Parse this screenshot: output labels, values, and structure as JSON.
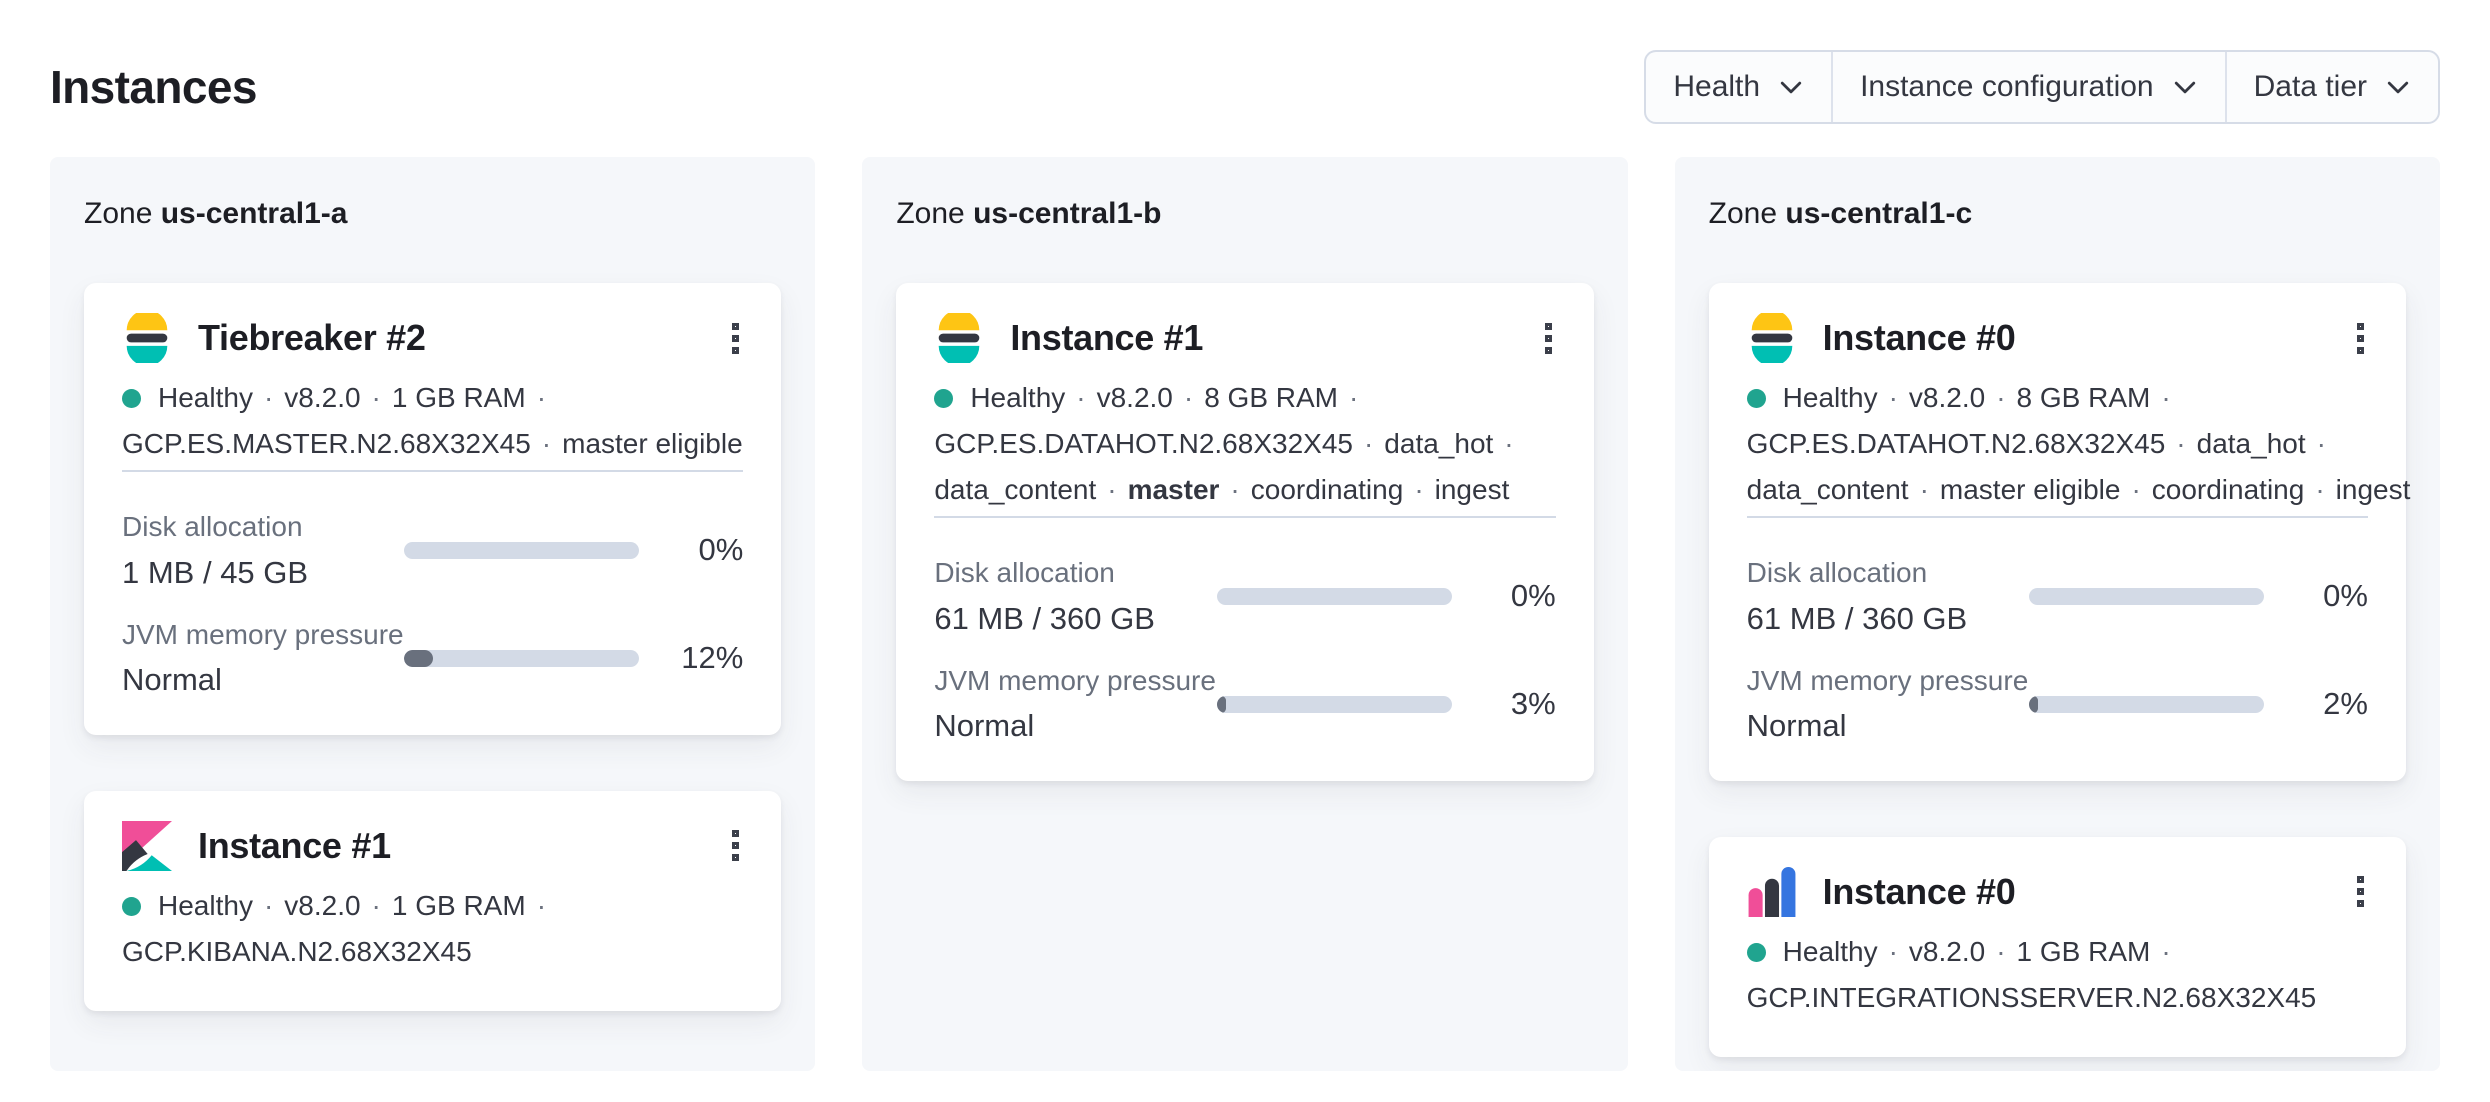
{
  "page": {
    "title": "Instances"
  },
  "filters": [
    {
      "label": "Health"
    },
    {
      "label": "Instance configuration"
    },
    {
      "label": "Data tier"
    }
  ],
  "icons": {
    "menu": "boxes-vertical-icon",
    "chevron": "chevron-down-icon",
    "health": "health-status-dot",
    "logos": [
      "elasticsearch-logo",
      "kibana-logo",
      "integrations-server-logo"
    ]
  },
  "colors": {
    "healthy_dot": "#20a48f",
    "bar_track": "#d3dae6",
    "bar_fill": "#69707d",
    "es_yellow": "#fec514",
    "es_dark": "#343741",
    "es_teal": "#00bfb3",
    "kibana_pink": "#f04e98",
    "agent_blue": "#3575e0"
  },
  "zones": [
    {
      "label": "Zone",
      "name": "us-central1-a",
      "cards": [
        {
          "logo": "elasticsearch",
          "title": "Tiebreaker #2",
          "health": "Healthy",
          "status_lines": [
            [
              {
                "text": "Healthy"
              },
              {
                "text": "·",
                "sep": true
              },
              {
                "text": "v8.2.0"
              },
              {
                "text": "·",
                "sep": true
              },
              {
                "text": "1 GB RAM"
              },
              {
                "text": "·",
                "sep": true
              }
            ],
            [
              {
                "text": "GCP.ES.MASTER.N2.68X32X45"
              },
              {
                "text": "·",
                "sep": true
              },
              {
                "text": "master eligible"
              }
            ]
          ],
          "metrics": [
            {
              "label": "Disk allocation",
              "value": "1 MB / 45 GB",
              "percent": 0,
              "percent_label": "0%"
            },
            {
              "label": "JVM memory pressure",
              "value": "Normal",
              "percent": 12,
              "percent_label": "12%"
            }
          ]
        },
        {
          "logo": "kibana",
          "title": "Instance #1",
          "health": "Healthy",
          "status_lines": [
            [
              {
                "text": "Healthy"
              },
              {
                "text": "·",
                "sep": true
              },
              {
                "text": "v8.2.0"
              },
              {
                "text": "·",
                "sep": true
              },
              {
                "text": "1 GB RAM"
              },
              {
                "text": "·",
                "sep": true
              }
            ],
            [
              {
                "text": "GCP.KIBANA.N2.68X32X45"
              }
            ]
          ],
          "metrics": []
        }
      ]
    },
    {
      "label": "Zone",
      "name": "us-central1-b",
      "cards": [
        {
          "logo": "elasticsearch",
          "title": "Instance #1",
          "health": "Healthy",
          "status_lines": [
            [
              {
                "text": "Healthy"
              },
              {
                "text": "·",
                "sep": true
              },
              {
                "text": "v8.2.0"
              },
              {
                "text": "·",
                "sep": true
              },
              {
                "text": "8 GB RAM"
              },
              {
                "text": "·",
                "sep": true
              }
            ],
            [
              {
                "text": "GCP.ES.DATAHOT.N2.68X32X45"
              },
              {
                "text": "·",
                "sep": true
              },
              {
                "text": "data_hot"
              },
              {
                "text": "·",
                "sep": true
              }
            ],
            [
              {
                "text": "data_content"
              },
              {
                "text": "·",
                "sep": true
              },
              {
                "text": "master",
                "bold": true
              },
              {
                "text": "·",
                "sep": true
              },
              {
                "text": "coordinating"
              },
              {
                "text": "·",
                "sep": true
              },
              {
                "text": "ingest"
              }
            ]
          ],
          "metrics": [
            {
              "label": "Disk allocation",
              "value": "61 MB / 360 GB",
              "percent": 0,
              "percent_label": "0%"
            },
            {
              "label": "JVM memory pressure",
              "value": "Normal",
              "percent": 3,
              "percent_label": "3%"
            }
          ]
        }
      ]
    },
    {
      "label": "Zone",
      "name": "us-central1-c",
      "cards": [
        {
          "logo": "elasticsearch",
          "title": "Instance #0",
          "health": "Healthy",
          "status_lines": [
            [
              {
                "text": "Healthy"
              },
              {
                "text": "·",
                "sep": true
              },
              {
                "text": "v8.2.0"
              },
              {
                "text": "·",
                "sep": true
              },
              {
                "text": "8 GB RAM"
              },
              {
                "text": "·",
                "sep": true
              }
            ],
            [
              {
                "text": "GCP.ES.DATAHOT.N2.68X32X45"
              },
              {
                "text": "·",
                "sep": true
              },
              {
                "text": "data_hot"
              },
              {
                "text": "·",
                "sep": true
              }
            ],
            [
              {
                "text": "data_content"
              },
              {
                "text": "·",
                "sep": true
              },
              {
                "text": "master eligible"
              },
              {
                "text": "·",
                "sep": true
              },
              {
                "text": "coordinating"
              },
              {
                "text": "·",
                "sep": true
              },
              {
                "text": "ingest"
              }
            ]
          ],
          "metrics": [
            {
              "label": "Disk allocation",
              "value": "61 MB / 360 GB",
              "percent": 0,
              "percent_label": "0%"
            },
            {
              "label": "JVM memory pressure",
              "value": "Normal",
              "percent": 2,
              "percent_label": "2%"
            }
          ]
        },
        {
          "logo": "integrations-server",
          "title": "Instance #0",
          "health": "Healthy",
          "status_lines": [
            [
              {
                "text": "Healthy"
              },
              {
                "text": "·",
                "sep": true
              },
              {
                "text": "v8.2.0"
              },
              {
                "text": "·",
                "sep": true
              },
              {
                "text": "1 GB RAM"
              },
              {
                "text": "·",
                "sep": true
              }
            ],
            [
              {
                "text": "GCP.INTEGRATIONSSERVER.N2.68X32X45"
              }
            ]
          ],
          "metrics": []
        }
      ]
    }
  ]
}
